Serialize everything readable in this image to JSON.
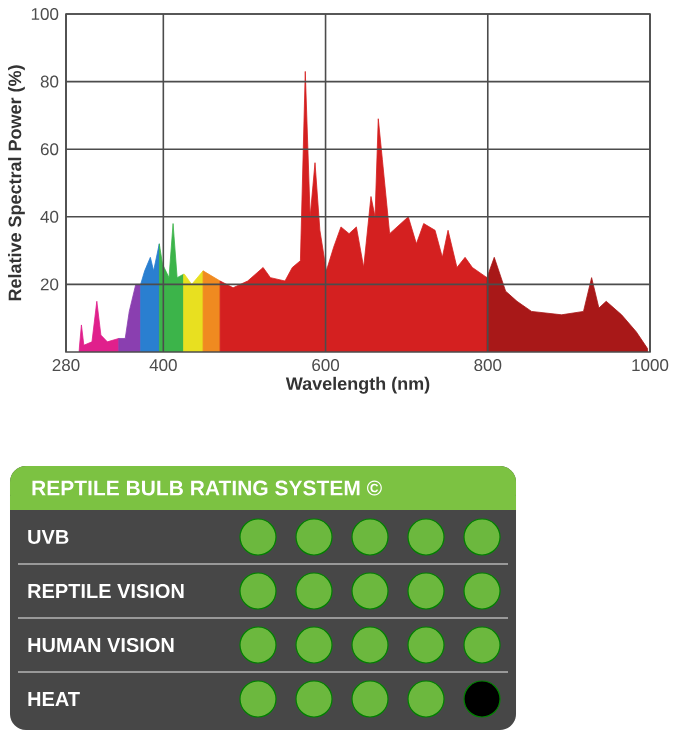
{
  "chart_data": [
    {
      "type": "area",
      "xlabel": "Wavelength (nm)",
      "ylabel": "Relative Spectral Power (%)",
      "xlim": [
        280,
        1000
      ],
      "ylim": [
        0,
        100
      ],
      "xticks": [
        280,
        400,
        600,
        800,
        1000
      ],
      "yticks": [
        20,
        40,
        60,
        80,
        100
      ],
      "grid": true,
      "series": [
        {
          "color": "#e0208c",
          "x": [
            296,
            299,
            302,
            312,
            318,
            323,
            331,
            345
          ],
          "values": [
            0,
            8,
            2,
            3,
            15,
            5,
            3,
            4
          ]
        },
        {
          "color": "#8a3fb0",
          "x": [
            345,
            353,
            358,
            366,
            372
          ],
          "values": [
            4,
            4,
            12,
            20,
            20
          ]
        },
        {
          "color": "#2a7fd0",
          "x": [
            372,
            377,
            384,
            388,
            395
          ],
          "values": [
            20,
            24,
            28,
            24,
            32
          ]
        },
        {
          "color": "#3cb44a",
          "x": [
            395,
            399,
            407,
            412,
            417,
            425
          ],
          "values": [
            32,
            26,
            22,
            38,
            22,
            23
          ]
        },
        {
          "color": "#e8e020",
          "x": [
            425,
            426,
            435,
            449
          ],
          "values": [
            23,
            23,
            20,
            24
          ]
        },
        {
          "color": "#f08a20",
          "x": [
            449,
            463,
            470
          ],
          "values": [
            24,
            22,
            21
          ]
        },
        {
          "color": "#d42020",
          "x": [
            470,
            486,
            504,
            523,
            532,
            550,
            559,
            569,
            575,
            581,
            587,
            593,
            601,
            610,
            619,
            629,
            638,
            647,
            656,
            661,
            665,
            670,
            679,
            702,
            712,
            721,
            735,
            744,
            751,
            762,
            772,
            781,
            799
          ],
          "values": [
            21,
            19,
            21,
            25,
            22,
            21,
            25,
            27,
            83,
            40,
            56,
            36,
            24,
            31,
            37,
            35,
            37,
            25,
            46,
            40,
            69,
            57,
            35,
            40,
            32,
            38,
            36,
            28,
            36,
            25,
            28,
            25,
            22
          ]
        },
        {
          "color": "#a81818",
          "x": [
            799,
            808,
            822,
            836,
            854,
            891,
            918,
            928,
            937,
            946,
            965,
            983,
            997
          ],
          "values": [
            22,
            28,
            18,
            15,
            12,
            11,
            12,
            22,
            13,
            15,
            11,
            6,
            1
          ]
        }
      ]
    },
    {
      "type": "other",
      "title": "REPTILE BULB RATING SYSTEM ©",
      "annotations": [
        "UVB",
        "REPTILE VISION",
        "HUMAN VISION",
        "HEAT"
      ]
    }
  ]
}
